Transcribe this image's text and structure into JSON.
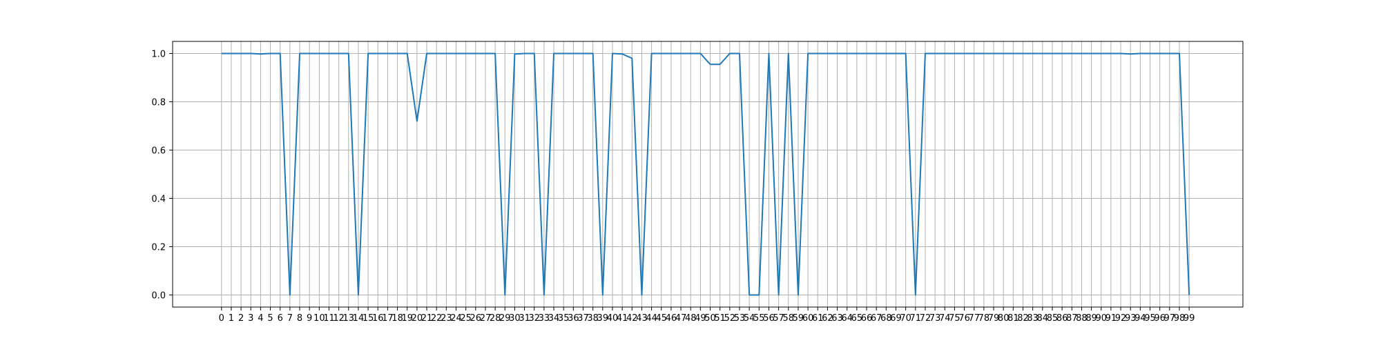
{
  "chart_data": {
    "type": "line",
    "title": "",
    "xlabel": "",
    "ylabel": "",
    "x_tick_labels": [
      "0",
      "1",
      "2",
      "3",
      "4",
      "5",
      "6",
      "7",
      "8",
      "9",
      "10",
      "11",
      "12",
      "13",
      "14",
      "15",
      "16",
      "17",
      "18",
      "19",
      "20",
      "21",
      "22",
      "23",
      "24",
      "25",
      "26",
      "27",
      "28",
      "29",
      "30",
      "31",
      "32",
      "33",
      "34",
      "35",
      "36",
      "37",
      "38",
      "39",
      "40",
      "41",
      "42",
      "43",
      "44",
      "45",
      "46",
      "47",
      "48",
      "49",
      "50",
      "51",
      "52",
      "53",
      "54",
      "55",
      "56",
      "57",
      "58",
      "59",
      "60",
      "61",
      "62",
      "63",
      "64",
      "65",
      "66",
      "67",
      "68",
      "69",
      "70",
      "71",
      "72",
      "73",
      "74",
      "75",
      "76",
      "77",
      "78",
      "79",
      "80",
      "81",
      "82",
      "83",
      "84",
      "85",
      "86",
      "87",
      "88",
      "89",
      "90",
      "91",
      "92",
      "93",
      "94",
      "95",
      "96",
      "97",
      "98",
      "99"
    ],
    "xlim": [
      -5,
      104.5
    ],
    "ylim": [
      -0.05,
      1.05
    ],
    "y_ticks": [
      0.0,
      0.2,
      0.4,
      0.6,
      0.8,
      1.0
    ],
    "y_tick_labels": [
      "0.0",
      "0.2",
      "0.4",
      "0.6",
      "0.8",
      "1.0"
    ],
    "grid": true,
    "legend": false,
    "series": [
      {
        "color": "#1f77b4",
        "values": [
          1.0,
          1.0,
          1.0,
          1.0,
          0.998,
          1.0,
          1.0,
          0.0,
          1.0,
          1.0,
          1.0,
          1.0,
          1.0,
          1.0,
          0.0,
          1.0,
          1.0,
          1.0,
          1.0,
          1.0,
          0.72,
          1.0,
          1.0,
          1.0,
          1.0,
          1.0,
          1.0,
          1.0,
          1.0,
          0.0,
          0.998,
          1.0,
          1.0,
          0.0,
          1.0,
          1.0,
          1.0,
          1.0,
          1.0,
          0.0,
          1.0,
          0.998,
          0.98,
          0.0,
          1.0,
          1.0,
          1.0,
          1.0,
          1.0,
          1.0,
          0.955,
          0.955,
          1.0,
          1.0,
          0.0,
          0.0,
          1.0,
          0.0,
          1.0,
          0.0,
          1.0,
          1.0,
          1.0,
          1.0,
          1.0,
          1.0,
          1.0,
          1.0,
          1.0,
          1.0,
          1.0,
          0.0,
          1.0,
          1.0,
          1.0,
          1.0,
          1.0,
          1.0,
          1.0,
          1.0,
          1.0,
          1.0,
          1.0,
          1.0,
          1.0,
          1.0,
          1.0,
          1.0,
          1.0,
          1.0,
          1.0,
          1.0,
          1.0,
          0.998,
          1.0,
          1.0,
          1.0,
          1.0,
          1.0,
          0.0
        ]
      }
    ]
  }
}
